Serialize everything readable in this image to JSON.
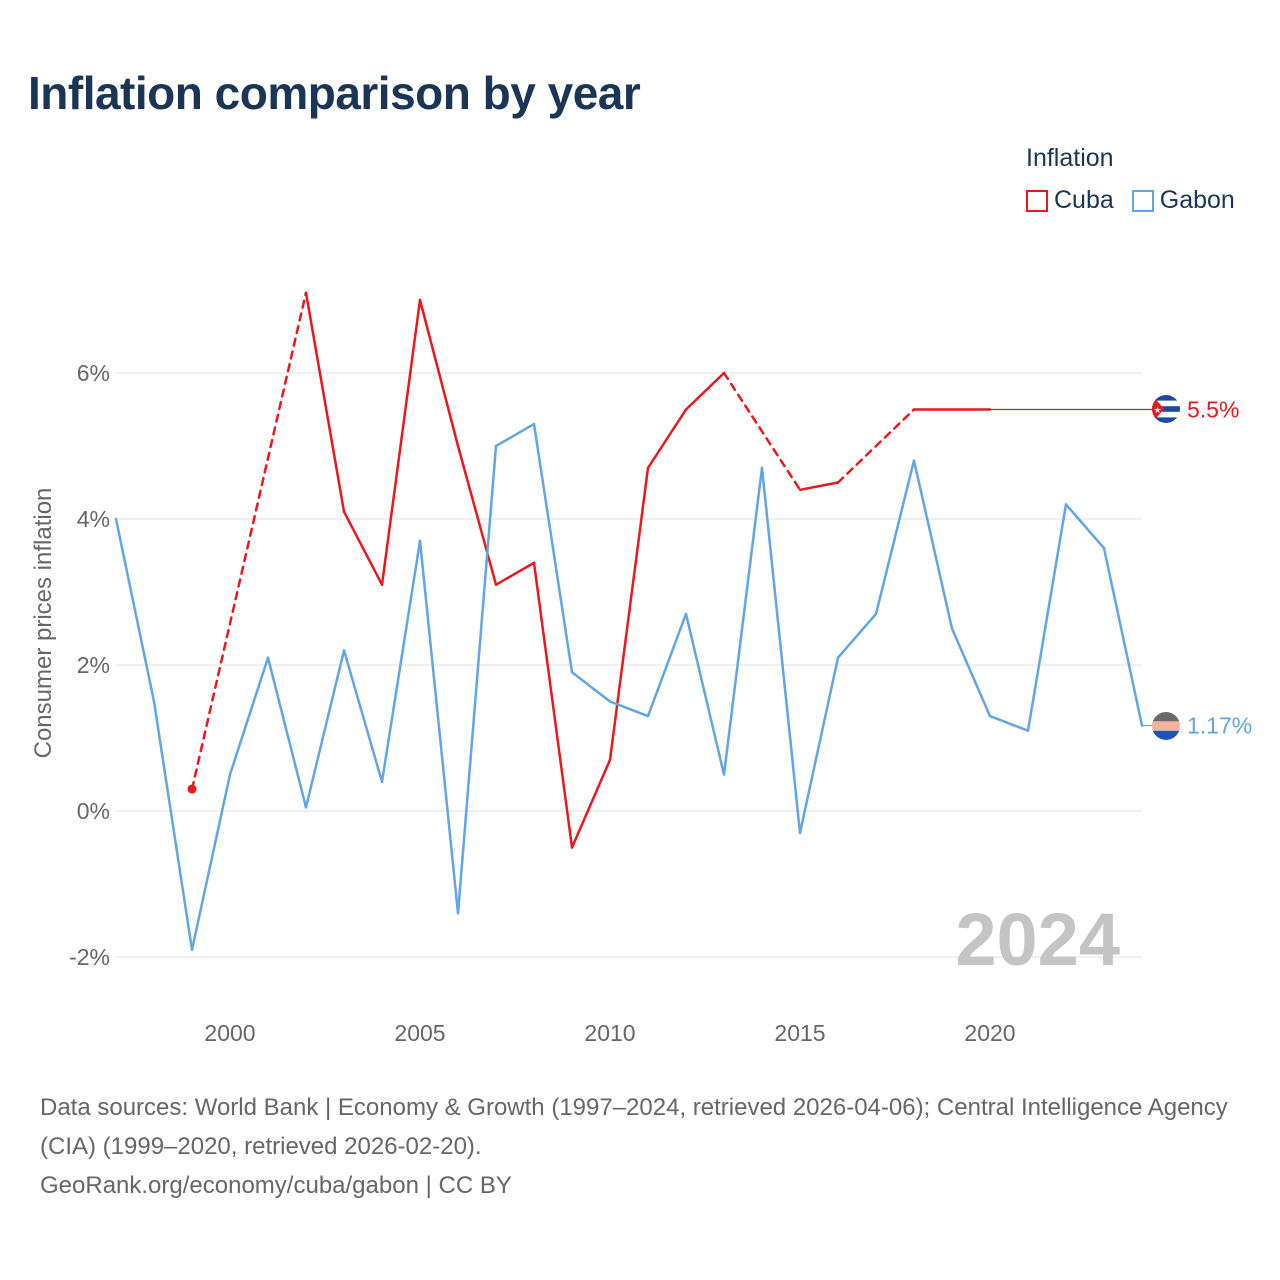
{
  "title": "Inflation comparison by year",
  "legend": {
    "title": "Inflation",
    "items": [
      {
        "name": "Cuba",
        "color": "#e8191e"
      },
      {
        "name": "Gabon",
        "color": "#62a5e2"
      }
    ]
  },
  "chart_data": {
    "type": "line",
    "title": "Inflation comparison by year",
    "xlabel": "",
    "ylabel": "Consumer prices inflation",
    "xlim": [
      1997,
      2024
    ],
    "ylim": [
      -2.7,
      7.5
    ],
    "x_ticks": [
      2000,
      2005,
      2010,
      2015,
      2020
    ],
    "y_ticks": [
      {
        "value": -2,
        "label": "-2%"
      },
      {
        "value": 0,
        "label": "0%"
      },
      {
        "value": 2,
        "label": "2%"
      },
      {
        "value": 4,
        "label": "4%"
      },
      {
        "value": 6,
        "label": "6%"
      }
    ],
    "grid": true,
    "year_watermark": "2024",
    "series": [
      {
        "name": "Cuba",
        "color": "#e8191e",
        "end_label": "5.5%",
        "end_icon": "cuba-flag-icon",
        "points": [
          {
            "x": 1999,
            "y": 0.3,
            "dashed": false
          },
          {
            "x": 2002,
            "y": 7.1,
            "dashed": true
          },
          {
            "x": 2003,
            "y": 4.1,
            "dashed": false
          },
          {
            "x": 2004,
            "y": 3.1,
            "dashed": false
          },
          {
            "x": 2005,
            "y": 7.0,
            "dashed": false
          },
          {
            "x": 2006,
            "y": 5.0,
            "dashed": false
          },
          {
            "x": 2007,
            "y": 3.1,
            "dashed": false
          },
          {
            "x": 2008,
            "y": 3.4,
            "dashed": false
          },
          {
            "x": 2009,
            "y": -0.5,
            "dashed": false
          },
          {
            "x": 2010,
            "y": 0.7,
            "dashed": false
          },
          {
            "x": 2011,
            "y": 4.7,
            "dashed": false
          },
          {
            "x": 2012,
            "y": 5.5,
            "dashed": false
          },
          {
            "x": 2013,
            "y": 6.0,
            "dashed": false
          },
          {
            "x": 2015,
            "y": 4.4,
            "dashed": true
          },
          {
            "x": 2016,
            "y": 4.5,
            "dashed": false
          },
          {
            "x": 2018,
            "y": 5.5,
            "dashed": true
          },
          {
            "x": 2020,
            "y": 5.5,
            "dashed": false
          }
        ],
        "extension": {
          "from": 2020,
          "to": 2024,
          "y": 5.5
        }
      },
      {
        "name": "Gabon",
        "color": "#62a5e2",
        "end_label": "1.17%",
        "end_icon": "gabon-flag-icon",
        "points": [
          {
            "x": 1997,
            "y": 4.0
          },
          {
            "x": 1998,
            "y": 1.5
          },
          {
            "x": 1999,
            "y": -1.9
          },
          {
            "x": 2000,
            "y": 0.5
          },
          {
            "x": 2001,
            "y": 2.1
          },
          {
            "x": 2002,
            "y": 0.05
          },
          {
            "x": 2003,
            "y": 2.2
          },
          {
            "x": 2004,
            "y": 0.4
          },
          {
            "x": 2005,
            "y": 3.7
          },
          {
            "x": 2006,
            "y": -1.4
          },
          {
            "x": 2007,
            "y": 5.0
          },
          {
            "x": 2008,
            "y": 5.3
          },
          {
            "x": 2009,
            "y": 1.9
          },
          {
            "x": 2010,
            "y": 1.5
          },
          {
            "x": 2011,
            "y": 1.3
          },
          {
            "x": 2012,
            "y": 2.7
          },
          {
            "x": 2013,
            "y": 0.5
          },
          {
            "x": 2014,
            "y": 4.7
          },
          {
            "x": 2015,
            "y": -0.3
          },
          {
            "x": 2016,
            "y": 2.1
          },
          {
            "x": 2017,
            "y": 2.7
          },
          {
            "x": 2018,
            "y": 4.8
          },
          {
            "x": 2019,
            "y": 2.5
          },
          {
            "x": 2020,
            "y": 1.3
          },
          {
            "x": 2021,
            "y": 1.1
          },
          {
            "x": 2022,
            "y": 4.2
          },
          {
            "x": 2023,
            "y": 3.6
          },
          {
            "x": 2024,
            "y": 1.17
          }
        ]
      }
    ]
  },
  "footer": {
    "sources": "Data sources: World Bank | Economy & Growth (1997–2024, retrieved 2026-04-06); Central Intelligence Agency (CIA) (1999–2020, retrieved 2026-02-20).",
    "site": "GeoRank.org/economy/cuba/gabon | CC BY"
  }
}
